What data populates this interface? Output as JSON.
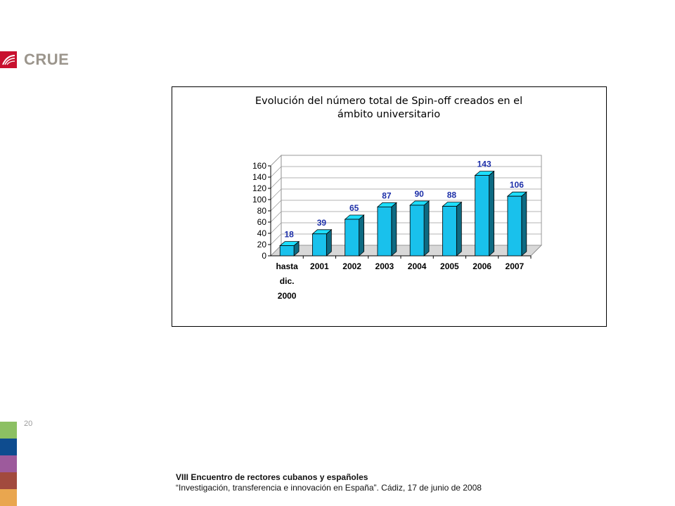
{
  "header": {
    "logo_text": "CRUE",
    "logo_icon": "crue-wing-icon",
    "logo_color": "#c8102e"
  },
  "chart_data": {
    "type": "bar",
    "title": "Evolución del número total de Spin-off creados en el ámbito universitario",
    "title_lines": [
      "Evolución del número total de Spin-off creados en el",
      "ámbito universitario"
    ],
    "categories": [
      "hasta dic. 2000",
      "2001",
      "2002",
      "2003",
      "2004",
      "2005",
      "2006",
      "2007"
    ],
    "category_lines": [
      [
        "hasta",
        "dic.",
        "2000"
      ],
      [
        "2001"
      ],
      [
        "2002"
      ],
      [
        "2003"
      ],
      [
        "2004"
      ],
      [
        "2005"
      ],
      [
        "2006"
      ],
      [
        "2007"
      ]
    ],
    "values": [
      18,
      39,
      65,
      87,
      90,
      88,
      143,
      106
    ],
    "ylim": [
      0,
      160
    ],
    "yticks": [
      0,
      20,
      40,
      60,
      80,
      100,
      120,
      140,
      160
    ],
    "xlabel": "",
    "ylabel": "",
    "grid": true,
    "legend": "none",
    "bar_color": "#19c1ec",
    "label_color": "#1d2fa8"
  },
  "page_number": "20",
  "side_colors": [
    "#8cc063",
    "#0e4c8f",
    "#9d5a9c",
    "#a24a3e",
    "#e9a64f"
  ],
  "footer": {
    "line1": "VIII Encuentro de rectores cubanos y españoles",
    "line2": "“Investigación, transferencia e innovación en España”. Cádiz,  17 de junio de 2008"
  }
}
